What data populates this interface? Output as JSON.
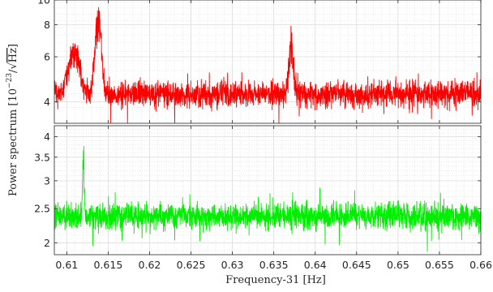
{
  "chart_data": {
    "type": "line",
    "xlabel": "Frequency-31 [Hz]",
    "ylabel": "Power spectrum [10^{-23}/√Hz]",
    "ylabel_parts": {
      "main": "Power spectrum [10",
      "exp": "−23",
      "slash": "/",
      "root": "√",
      "unit": "Hz",
      "close": "]"
    },
    "xlim": [
      0.6085,
      0.66
    ],
    "x_ticks": [
      0.61,
      0.615,
      0.62,
      0.625,
      0.63,
      0.635,
      0.64,
      0.645,
      0.65,
      0.655,
      0.66
    ],
    "x_tick_labels": [
      "0.61",
      "0.615",
      "0.62",
      "0.625",
      "0.63",
      "0.635",
      "0.64",
      "0.645",
      "0.65",
      "0.655",
      "0.66"
    ],
    "grid": true,
    "panels": [
      {
        "position": "top",
        "series_color": "#ff0000",
        "yscale": "log",
        "ylim": [
          3.3,
          10
        ],
        "y_ticks": [
          4,
          6,
          8,
          10
        ],
        "y_tick_labels": [
          "4",
          "6",
          "8",
          "10"
        ],
        "baseline": 4.3,
        "noise": 0.55,
        "peaks": [
          {
            "x": 0.6109,
            "height": 7.1,
            "width": 0.0006
          },
          {
            "x": 0.6138,
            "height": 9.7,
            "width": 0.00035
          },
          {
            "x": 0.6371,
            "height": 7.6,
            "width": 0.00025
          }
        ]
      },
      {
        "position": "bottom",
        "series_color": "#00ee00",
        "yscale": "log",
        "ylim": [
          1.85,
          4.3
        ],
        "y_ticks": [
          2,
          2.5,
          3,
          3.5,
          4
        ],
        "y_tick_labels": [
          "2",
          "2.5",
          "3",
          "3.5",
          "4"
        ],
        "baseline": 2.38,
        "noise": 0.22,
        "peaks": [
          {
            "x": 0.612,
            "height": 4.1,
            "width": 8e-05
          }
        ]
      }
    ]
  }
}
